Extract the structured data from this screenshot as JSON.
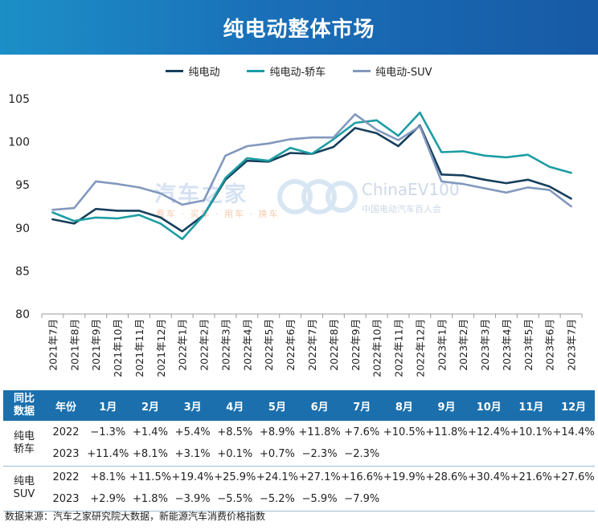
{
  "title": "纯电动整体市场",
  "chart_data": {
    "type": "line",
    "categories": [
      "2021年7月",
      "2021年8月",
      "2021年9月",
      "2021年10月",
      "2021年11月",
      "2021年12月",
      "2022年1月",
      "2022年2月",
      "2022年3月",
      "2022年4月",
      "2022年5月",
      "2022年6月",
      "2022年7月",
      "2022年8月",
      "2022年9月",
      "2022年10月",
      "2022年11月",
      "2022年12月",
      "2023年1月",
      "2023年2月",
      "2023年3月",
      "2023年4月",
      "2023年5月",
      "2023年6月",
      "2023年7月"
    ],
    "ylim": [
      80,
      105
    ],
    "yticks": [
      80,
      85,
      90,
      95,
      100,
      105
    ],
    "series": [
      {
        "name": "纯电动",
        "color": "#163f5c",
        "values": [
          91.0,
          90.5,
          92.2,
          92.0,
          92.0,
          91.2,
          89.6,
          91.5,
          95.6,
          97.8,
          97.7,
          98.7,
          98.6,
          99.4,
          101.6,
          101.0,
          99.5,
          101.9,
          96.2,
          96.1,
          95.6,
          95.2,
          95.6,
          94.8,
          93.4
        ]
      },
      {
        "name": "纯电动-轿车",
        "color": "#1c9da3",
        "values": [
          91.8,
          90.8,
          91.2,
          91.1,
          91.5,
          90.5,
          88.7,
          91.5,
          95.8,
          98.1,
          97.8,
          99.3,
          98.6,
          100.3,
          102.2,
          102.5,
          100.7,
          103.4,
          98.8,
          98.9,
          98.4,
          98.2,
          98.5,
          97.1,
          96.4
        ]
      },
      {
        "name": "纯电动-SUV",
        "color": "#8298bd",
        "values": [
          92.1,
          92.3,
          95.4,
          95.1,
          94.7,
          94.0,
          92.7,
          93.2,
          98.4,
          99.5,
          99.8,
          100.3,
          100.5,
          100.5,
          103.2,
          101.4,
          100.2,
          101.8,
          95.4,
          95.1,
          94.6,
          94.1,
          94.7,
          94.4,
          92.5
        ]
      }
    ]
  },
  "watermarks": {
    "a_main": "汽车之家",
    "a_sub": "看车 · 买车 · 用车 · 换车",
    "b_main": "ChinaEV100",
    "b_sub": "中国电动汽车百人会"
  },
  "table": {
    "header": [
      "同比\n数据",
      "年份",
      "1月",
      "2月",
      "3月",
      "4月",
      "5月",
      "6月",
      "7月",
      "8月",
      "9月",
      "10月",
      "11月",
      "12月"
    ],
    "groups": [
      {
        "label": "纯电\n轿车",
        "rows": [
          {
            "year": "2022",
            "cells": [
              "−1.3%",
              "+1.4%",
              "+5.4%",
              "+8.5%",
              "+8.9%",
              "+11.8%",
              "+7.6%",
              "+10.5%",
              "+11.8%",
              "+12.4%",
              "+10.1%",
              "+14.4%"
            ]
          },
          {
            "year": "2023",
            "cells": [
              "+11.4%",
              "+8.1%",
              "+3.1%",
              "+0.1%",
              "+0.7%",
              "−2.3%",
              "−2.3%",
              "",
              "",
              "",
              "",
              ""
            ]
          }
        ]
      },
      {
        "label": "纯电\nSUV",
        "rows": [
          {
            "year": "2022",
            "cells": [
              "+8.1%",
              "+11.5%",
              "+19.4%",
              "+25.9%",
              "+24.1%",
              "+27.1%",
              "+16.6%",
              "+19.9%",
              "+28.6%",
              "+30.4%",
              "+21.6%",
              "+27.6%"
            ]
          },
          {
            "year": "2023",
            "cells": [
              "+2.9%",
              "+1.8%",
              "−3.9%",
              "−5.5%",
              "−5.2%",
              "−5.9%",
              "−7.9%",
              "",
              "",
              "",
              "",
              ""
            ]
          }
        ]
      }
    ]
  },
  "source": "数据来源：汽车之家研究院大数据，新能源汽车消费价格指数"
}
